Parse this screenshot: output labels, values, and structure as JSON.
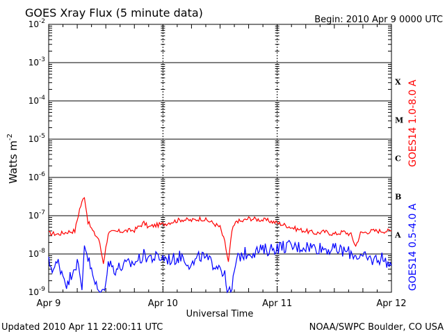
{
  "header": {
    "title": "GOES Xray Flux (5 minute data)",
    "begin": "Begin:  2010 Apr 9 0000 UTC"
  },
  "footer": {
    "updated": "Updated 2010 Apr 11 22:00:11 UTC",
    "credit": "NOAA/SWPC Boulder, CO USA"
  },
  "colors": {
    "long_channel": "#ff0000",
    "short_channel": "#0000ff",
    "grid": "#000000"
  },
  "chart_data": {
    "type": "line",
    "title": "GOES Xray Flux (5 minute data)",
    "xlabel": "Universal Time",
    "ylabel": "Watts m",
    "ylabel_sup": "-2",
    "yscale": "log",
    "ylim": [
      1e-09,
      0.01
    ],
    "xlim": [
      "2010-04-09",
      "2010-04-12"
    ],
    "x_ticks": [
      "Apr 9",
      "Apr 10",
      "Apr 11",
      "Apr 12"
    ],
    "y_ticks": [
      {
        "base": "10",
        "exp": "-9"
      },
      {
        "base": "10",
        "exp": "-8"
      },
      {
        "base": "10",
        "exp": "-7"
      },
      {
        "base": "10",
        "exp": "-6"
      },
      {
        "base": "10",
        "exp": "-5"
      },
      {
        "base": "10",
        "exp": "-4"
      },
      {
        "base": "10",
        "exp": "-3"
      },
      {
        "base": "10",
        "exp": "-2"
      }
    ],
    "flare_classes": [
      "A",
      "B",
      "C",
      "M",
      "X"
    ],
    "grid": true,
    "series": [
      {
        "name": "GOES14 1.0-8.0 A",
        "color": "#ff0000",
        "points": [
          [
            "2010-04-09 00:00",
            3.5e-08
          ],
          [
            "2010-04-09 02:00",
            3.3e-08
          ],
          [
            "2010-04-09 04:00",
            3.8e-08
          ],
          [
            "2010-04-09 05:30",
            4e-08
          ],
          [
            "2010-04-09 06:30",
            1.5e-07
          ],
          [
            "2010-04-09 07:30",
            3.3e-07
          ],
          [
            "2010-04-09 08:15",
            7e-08
          ],
          [
            "2010-04-09 09:30",
            3.5e-08
          ],
          [
            "2010-04-09 10:30",
            2.5e-08
          ],
          [
            "2010-04-09 11:30",
            6e-09
          ],
          [
            "2010-04-09 12:30",
            3.5e-08
          ],
          [
            "2010-04-09 14:00",
            3.8e-08
          ],
          [
            "2010-04-09 16:00",
            4e-08
          ],
          [
            "2010-04-09 18:00",
            4.2e-08
          ],
          [
            "2010-04-09 20:00",
            6.5e-08
          ],
          [
            "2010-04-09 21:00",
            5e-08
          ],
          [
            "2010-04-09 22:00",
            5.5e-08
          ],
          [
            "2010-04-10 00:00",
            6e-08
          ],
          [
            "2010-04-10 02:00",
            7e-08
          ],
          [
            "2010-04-10 04:00",
            8e-08
          ],
          [
            "2010-04-10 06:00",
            7.5e-08
          ],
          [
            "2010-04-10 08:00",
            8.5e-08
          ],
          [
            "2010-04-10 10:00",
            7e-08
          ],
          [
            "2010-04-10 12:00",
            5e-08
          ],
          [
            "2010-04-10 13:00",
            2e-08
          ],
          [
            "2010-04-10 13:45",
            6e-09
          ],
          [
            "2010-04-10 14:30",
            4e-08
          ],
          [
            "2010-04-10 15:30",
            7.5e-08
          ],
          [
            "2010-04-10 16:30",
            7e-08
          ],
          [
            "2010-04-10 18:00",
            8.5e-08
          ],
          [
            "2010-04-10 20:00",
            8e-08
          ],
          [
            "2010-04-10 22:00",
            7.5e-08
          ],
          [
            "2010-04-11 00:00",
            6.5e-08
          ],
          [
            "2010-04-11 02:00",
            5.5e-08
          ],
          [
            "2010-04-11 04:00",
            4.5e-08
          ],
          [
            "2010-04-11 06:00",
            4e-08
          ],
          [
            "2010-04-11 08:00",
            3.5e-08
          ],
          [
            "2010-04-11 10:00",
            3.8e-08
          ],
          [
            "2010-04-11 12:00",
            3.3e-08
          ],
          [
            "2010-04-11 14:00",
            3.8e-08
          ],
          [
            "2010-04-11 15:30",
            3.2e-08
          ],
          [
            "2010-04-11 16:30",
            1.6e-08
          ],
          [
            "2010-04-11 17:30",
            3.5e-08
          ],
          [
            "2010-04-11 20:00",
            4e-08
          ],
          [
            "2010-04-12 00:00",
            4e-08
          ],
          [
            "2010-04-12 02:00",
            4.2e-08
          ],
          [
            "2010-04-12 04:00",
            3.8e-08
          ],
          [
            "2010-04-12 06:00",
            4e-08
          ],
          [
            "2010-04-12 08:00",
            3.8e-08
          ],
          [
            "2010-04-12 10:00",
            3.5e-08
          ],
          [
            "2010-04-12 12:00",
            3.2e-08
          ],
          [
            "2010-04-12 14:00",
            3.3e-08
          ],
          [
            "2010-04-12 16:00",
            3.5e-08
          ],
          [
            "2010-04-12 18:00",
            3e-08
          ],
          [
            "2010-04-12 20:00",
            2.8e-08
          ],
          [
            "2010-04-12 21:30",
            2.5e-08
          ],
          [
            "2010-04-12 22:00",
            2.7e-08
          ]
        ]
      },
      {
        "name": "GOES14 0.5-4.0 A",
        "color": "#0000ff",
        "points": [
          [
            "2010-04-09 00:00",
            6e-09
          ],
          [
            "2010-04-09 01:00",
            4e-09
          ],
          [
            "2010-04-09 02:00",
            6e-09
          ],
          [
            "2010-04-09 03:00",
            3e-09
          ],
          [
            "2010-04-09 04:00",
            1.5e-09
          ],
          [
            "2010-04-09 05:00",
            4e-09
          ],
          [
            "2010-04-09 06:00",
            6e-09
          ],
          [
            "2010-04-09 07:00",
            1.2e-09
          ],
          [
            "2010-04-09 07:30",
            2e-08
          ],
          [
            "2010-04-09 08:30",
            6e-09
          ],
          [
            "2010-04-09 09:30",
            2e-09
          ],
          [
            "2010-04-09 10:30",
            1e-09
          ],
          [
            "2010-04-09 11:30",
            1e-09
          ],
          [
            "2010-04-09 12:30",
            6e-09
          ],
          [
            "2010-04-09 14:00",
            4e-09
          ],
          [
            "2010-04-09 16:00",
            5e-09
          ],
          [
            "2010-04-09 18:00",
            6e-09
          ],
          [
            "2010-04-09 20:00",
            9e-09
          ],
          [
            "2010-04-09 22:00",
            8e-09
          ],
          [
            "2010-04-10 00:00",
            8e-09
          ],
          [
            "2010-04-10 02:00",
            7e-09
          ],
          [
            "2010-04-10 04:00",
            9e-09
          ],
          [
            "2010-04-10 06:00",
            5e-09
          ],
          [
            "2010-04-10 08:00",
            9e-09
          ],
          [
            "2010-04-10 10:00",
            6e-09
          ],
          [
            "2010-04-10 12:00",
            5e-09
          ],
          [
            "2010-04-10 13:00",
            2.5e-09
          ],
          [
            "2010-04-10 13:30",
            1e-09
          ],
          [
            "2010-04-10 14:30",
            1e-09
          ],
          [
            "2010-04-10 15:00",
            4e-09
          ],
          [
            "2010-04-10 16:00",
            9e-09
          ],
          [
            "2010-04-10 18:00",
            1.1e-08
          ],
          [
            "2010-04-10 20:00",
            1.2e-08
          ],
          [
            "2010-04-10 22:00",
            1.3e-08
          ],
          [
            "2010-04-11 00:00",
            1.5e-08
          ],
          [
            "2010-04-11 02:00",
            1.6e-08
          ],
          [
            "2010-04-11 04:00",
            1.5e-08
          ],
          [
            "2010-04-11 06:00",
            1.6e-08
          ],
          [
            "2010-04-11 08:00",
            1.5e-08
          ],
          [
            "2010-04-11 10:00",
            1.4e-08
          ],
          [
            "2010-04-11 12:00",
            1.3e-08
          ],
          [
            "2010-04-11 14:00",
            1.2e-08
          ],
          [
            "2010-04-11 16:00",
            1e-08
          ],
          [
            "2010-04-11 18:00",
            8e-09
          ],
          [
            "2010-04-11 20:00",
            7e-09
          ],
          [
            "2010-04-11 22:00",
            8e-09
          ],
          [
            "2010-04-12 00:00",
            5e-09
          ],
          [
            "2010-04-12 02:00",
            6e-09
          ],
          [
            "2010-04-12 04:00",
            7e-09
          ],
          [
            "2010-04-12 06:00",
            3e-09
          ],
          [
            "2010-04-12 08:00",
            7e-09
          ],
          [
            "2010-04-12 10:00",
            8e-09
          ],
          [
            "2010-04-12 12:00",
            6e-09
          ],
          [
            "2010-04-12 14:00",
            9e-09
          ],
          [
            "2010-04-12 16:00",
            8e-09
          ],
          [
            "2010-04-12 18:00",
            6e-09
          ],
          [
            "2010-04-12 19:30",
            3e-09
          ],
          [
            "2010-04-12 20:30",
            1.5e-09
          ],
          [
            "2010-04-12 21:30",
            1e-09
          ],
          [
            "2010-04-12 22:00",
            1.2e-09
          ]
        ]
      }
    ]
  }
}
